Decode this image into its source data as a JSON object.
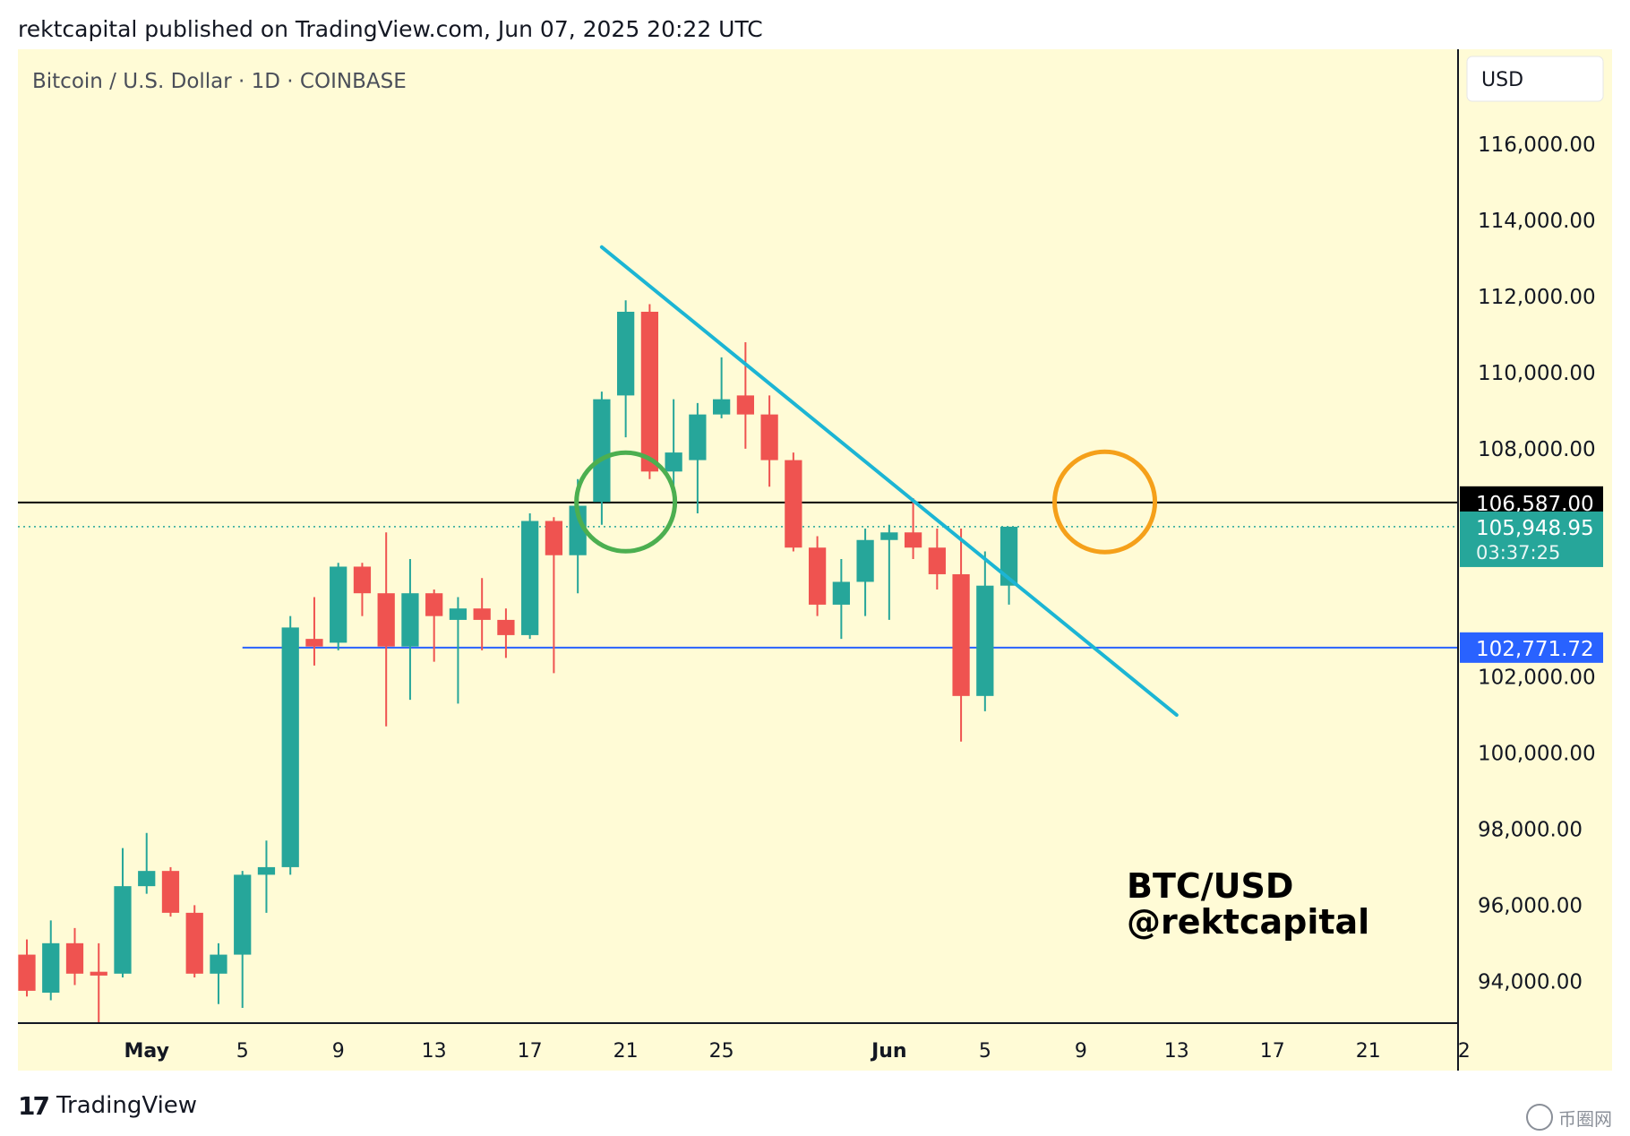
{
  "header": {
    "published_line": "rektcapital published on TradingView.com, Jun 07, 2025 20:22 UTC"
  },
  "chart_title": "Bitcoin / U.S. Dollar · 1D · COINBASE",
  "currency_button": "USD",
  "brand": {
    "label": "TradingView",
    "icon": "tradingview-logo-icon"
  },
  "watermark": {
    "label": "币圈网",
    "icon": "coin-logo-icon"
  },
  "colors": {
    "background": "#fffbd6",
    "bull": "#26a69a",
    "bear": "#ef5350",
    "trendline": "#1cb5d4",
    "support_line": "#2962ff",
    "resistance_line": "#000000",
    "green_circle": "#4caf50",
    "orange_circle": "#f5a01a"
  },
  "chart_data": {
    "type": "candlestick",
    "symbol": "BTC/USD",
    "annotation": [
      "BTC/USD",
      "@rektcapital"
    ],
    "x_axis_labels": [
      {
        "date": "2025-05-01",
        "label": "May",
        "bold": true
      },
      {
        "date": "2025-05-05",
        "label": "5"
      },
      {
        "date": "2025-05-09",
        "label": "9"
      },
      {
        "date": "2025-05-13",
        "label": "13"
      },
      {
        "date": "2025-05-17",
        "label": "17"
      },
      {
        "date": "2025-05-21",
        "label": "21"
      },
      {
        "date": "2025-05-25",
        "label": "25"
      },
      {
        "date": "2025-06-01",
        "label": "Jun",
        "bold": true
      },
      {
        "date": "2025-06-05",
        "label": "5"
      },
      {
        "date": "2025-06-09",
        "label": "9"
      },
      {
        "date": "2025-06-13",
        "label": "13"
      },
      {
        "date": "2025-06-17",
        "label": "17"
      },
      {
        "date": "2025-06-21",
        "label": "21"
      },
      {
        "date": "2025-06-25",
        "label": "2"
      }
    ],
    "x_range": [
      "2025-04-26",
      "2025-06-24"
    ],
    "y_ticks": [
      94000,
      96000,
      98000,
      100000,
      102000,
      104000,
      106000,
      108000,
      110000,
      112000,
      114000,
      116000
    ],
    "y_tick_labels": [
      "94,000.00",
      "96,000.00",
      "98,000.00",
      "100,000.00",
      "102,000.00",
      "",
      "",
      "108,000.00",
      "110,000.00",
      "112,000.00",
      "114,000.00",
      "116,000.00"
    ],
    "y_range": [
      92900,
      118500
    ],
    "candles": [
      {
        "date": "2025-04-26",
        "o": 94700,
        "h": 95100,
        "l": 93600,
        "c": 93750
      },
      {
        "date": "2025-04-27",
        "o": 93700,
        "h": 95600,
        "l": 93500,
        "c": 95000
      },
      {
        "date": "2025-04-28",
        "o": 95000,
        "h": 95400,
        "l": 93900,
        "c": 94200
      },
      {
        "date": "2025-04-29",
        "o": 94250,
        "h": 95000,
        "l": 92900,
        "c": 94150
      },
      {
        "date": "2025-04-30",
        "o": 94200,
        "h": 97500,
        "l": 94100,
        "c": 96500
      },
      {
        "date": "2025-05-01",
        "o": 96500,
        "h": 97900,
        "l": 96300,
        "c": 96900
      },
      {
        "date": "2025-05-02",
        "o": 96900,
        "h": 97000,
        "l": 95700,
        "c": 95800
      },
      {
        "date": "2025-05-03",
        "o": 95800,
        "h": 96000,
        "l": 94100,
        "c": 94200
      },
      {
        "date": "2025-05-04",
        "o": 94200,
        "h": 95000,
        "l": 93400,
        "c": 94700
      },
      {
        "date": "2025-05-05",
        "o": 94700,
        "h": 96900,
        "l": 93300,
        "c": 96800
      },
      {
        "date": "2025-05-06",
        "o": 96800,
        "h": 97700,
        "l": 95800,
        "c": 97000
      },
      {
        "date": "2025-05-07",
        "o": 97000,
        "h": 103600,
        "l": 96800,
        "c": 103300
      },
      {
        "date": "2025-05-08",
        "o": 103000,
        "h": 104100,
        "l": 102300,
        "c": 102800
      },
      {
        "date": "2025-05-09",
        "o": 102900,
        "h": 105000,
        "l": 102700,
        "c": 104900
      },
      {
        "date": "2025-05-10",
        "o": 104900,
        "h": 105000,
        "l": 103600,
        "c": 104200
      },
      {
        "date": "2025-05-11",
        "o": 104200,
        "h": 105800,
        "l": 100700,
        "c": 102800
      },
      {
        "date": "2025-05-12",
        "o": 102800,
        "h": 105100,
        "l": 101400,
        "c": 104200
      },
      {
        "date": "2025-05-13",
        "o": 104200,
        "h": 104300,
        "l": 102400,
        "c": 103600
      },
      {
        "date": "2025-05-14",
        "o": 103500,
        "h": 104100,
        "l": 101300,
        "c": 103800
      },
      {
        "date": "2025-05-15",
        "o": 103800,
        "h": 104600,
        "l": 102700,
        "c": 103500
      },
      {
        "date": "2025-05-16",
        "o": 103500,
        "h": 103800,
        "l": 102500,
        "c": 103100
      },
      {
        "date": "2025-05-17",
        "o": 103100,
        "h": 106300,
        "l": 103000,
        "c": 106100
      },
      {
        "date": "2025-05-18",
        "o": 106100,
        "h": 106200,
        "l": 102100,
        "c": 105200
      },
      {
        "date": "2025-05-19",
        "o": 105200,
        "h": 107200,
        "l": 104200,
        "c": 106500
      },
      {
        "date": "2025-05-20",
        "o": 106600,
        "h": 109500,
        "l": 106000,
        "c": 109300
      },
      {
        "date": "2025-05-21",
        "o": 109400,
        "h": 111900,
        "l": 108300,
        "c": 111600
      },
      {
        "date": "2025-05-22",
        "o": 111600,
        "h": 111800,
        "l": 107200,
        "c": 107400
      },
      {
        "date": "2025-05-23",
        "o": 107400,
        "h": 109300,
        "l": 106500,
        "c": 107900
      },
      {
        "date": "2025-05-24",
        "o": 107700,
        "h": 109200,
        "l": 106300,
        "c": 108900
      },
      {
        "date": "2025-05-25",
        "o": 108900,
        "h": 110400,
        "l": 108800,
        "c": 109300
      },
      {
        "date": "2025-05-26",
        "o": 109400,
        "h": 110800,
        "l": 108000,
        "c": 108900
      },
      {
        "date": "2025-05-27",
        "o": 108900,
        "h": 109400,
        "l": 107000,
        "c": 107700
      },
      {
        "date": "2025-05-28",
        "o": 107700,
        "h": 107900,
        "l": 105300,
        "c": 105400
      },
      {
        "date": "2025-05-29",
        "o": 105400,
        "h": 105700,
        "l": 103600,
        "c": 103900
      },
      {
        "date": "2025-05-30",
        "o": 103900,
        "h": 105100,
        "l": 103000,
        "c": 104500
      },
      {
        "date": "2025-05-31",
        "o": 104500,
        "h": 105900,
        "l": 103600,
        "c": 105600
      },
      {
        "date": "2025-06-01",
        "o": 105600,
        "h": 106000,
        "l": 103500,
        "c": 105800
      },
      {
        "date": "2025-06-02",
        "o": 105800,
        "h": 106700,
        "l": 105100,
        "c": 105400
      },
      {
        "date": "2025-06-03",
        "o": 105400,
        "h": 105900,
        "l": 104300,
        "c": 104700
      },
      {
        "date": "2025-06-04",
        "o": 104700,
        "h": 105900,
        "l": 100300,
        "c": 101500
      },
      {
        "date": "2025-06-05",
        "o": 101500,
        "h": 105300,
        "l": 101100,
        "c": 104400
      },
      {
        "date": "2025-06-06",
        "o": 104400,
        "h": 105948.95,
        "l": 103900,
        "c": 105948.95
      }
    ],
    "horizontal_lines": [
      {
        "name": "resistance",
        "price": 106587.0,
        "label": "106,587.00",
        "style": "solid"
      },
      {
        "name": "support",
        "price": 102771.72,
        "label": "102,771.72",
        "style": "solid",
        "start_date": "2025-05-05"
      },
      {
        "name": "last-price",
        "price": 105948.95,
        "label": "105,948.95",
        "countdown": "03:37:25",
        "style": "dotted"
      }
    ],
    "trendline": {
      "from": {
        "date": "2025-05-20",
        "price": 113300
      },
      "to": {
        "date": "2025-06-13",
        "price": 101000
      }
    },
    "circles": [
      {
        "name": "green-circle",
        "date": "2025-05-21",
        "price": 106600
      },
      {
        "name": "orange-circle",
        "date": "2025-06-10",
        "price": 106600
      }
    ]
  }
}
